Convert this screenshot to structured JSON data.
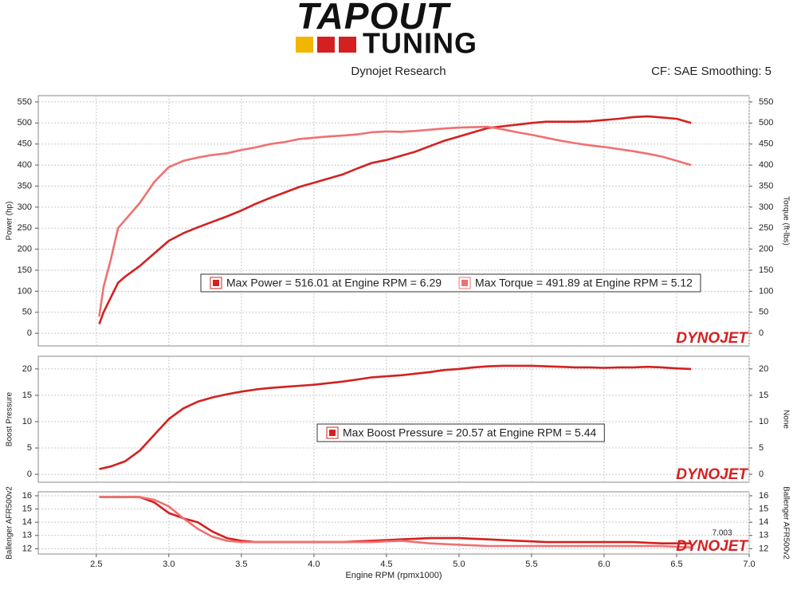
{
  "header": {
    "logo_top": "TAPOUT",
    "logo_bottom": "TUNING",
    "source": "Dynojet Research",
    "settings": "CF: SAE Smoothing: 5"
  },
  "chart_data": [
    {
      "type": "line",
      "ylabel": "Power (hp)",
      "y2label": "Torque (ft-lbs)",
      "watermark": "DYNOJET",
      "grid": true,
      "x": [
        2.52,
        2.55,
        2.6,
        2.65,
        2.7,
        2.8,
        2.9,
        3.0,
        3.1,
        3.2,
        3.3,
        3.4,
        3.5,
        3.6,
        3.7,
        3.8,
        3.9,
        4.0,
        4.1,
        4.2,
        4.3,
        4.4,
        4.5,
        4.6,
        4.7,
        4.8,
        4.9,
        5.0,
        5.1,
        5.2,
        5.3,
        5.4,
        5.5,
        5.6,
        5.7,
        5.8,
        5.9,
        6.0,
        6.1,
        6.2,
        6.3,
        6.4,
        6.5,
        6.6
      ],
      "series": [
        {
          "name": "Max Power = 516.01 at Engine RPM = 6.29",
          "color": "#d42020",
          "values": [
            22,
            50,
            85,
            120,
            135,
            160,
            190,
            220,
            238,
            252,
            265,
            278,
            292,
            308,
            322,
            335,
            348,
            358,
            368,
            378,
            392,
            405,
            412,
            422,
            432,
            445,
            458,
            468,
            478,
            488,
            492,
            496,
            500,
            503,
            503,
            503,
            504,
            507,
            510,
            514,
            516,
            513,
            510,
            500
          ]
        },
        {
          "name": "Max Torque = 491.89 at Engine RPM = 5.12",
          "color": "#f07070",
          "axis": "y2",
          "values": [
            40,
            110,
            175,
            250,
            270,
            310,
            360,
            395,
            410,
            418,
            424,
            428,
            436,
            442,
            450,
            455,
            462,
            465,
            468,
            470,
            473,
            478,
            480,
            479,
            481,
            484,
            487,
            489,
            490,
            491,
            485,
            478,
            472,
            465,
            458,
            452,
            447,
            443,
            438,
            433,
            427,
            420,
            410,
            400
          ]
        }
      ],
      "ylim": [
        -30,
        565
      ],
      "yticks": [
        0,
        50,
        100,
        150,
        200,
        250,
        300,
        350,
        400,
        450,
        500,
        550
      ],
      "y2lim": [
        -30,
        565
      ],
      "y2ticks": [
        0,
        50,
        100,
        150,
        200,
        250,
        300,
        350,
        400,
        450,
        500,
        550
      ]
    },
    {
      "type": "line",
      "ylabel": "Boost Pressure",
      "y2label": "None",
      "watermark": "DYNOJET",
      "grid": true,
      "x": [
        2.52,
        2.6,
        2.7,
        2.8,
        2.9,
        3.0,
        3.1,
        3.2,
        3.3,
        3.4,
        3.5,
        3.6,
        3.7,
        3.8,
        3.9,
        4.0,
        4.1,
        4.2,
        4.3,
        4.4,
        4.5,
        4.6,
        4.7,
        4.8,
        4.9,
        5.0,
        5.1,
        5.2,
        5.3,
        5.4,
        5.5,
        5.6,
        5.7,
        5.8,
        5.9,
        6.0,
        6.1,
        6.2,
        6.3,
        6.4,
        6.5,
        6.6
      ],
      "series": [
        {
          "name": "Max Boost Pressure = 20.57 at Engine RPM = 5.44",
          "color": "#d42020",
          "values": [
            1,
            1.5,
            2.5,
            4.5,
            7.5,
            10.5,
            12.5,
            13.8,
            14.6,
            15.2,
            15.7,
            16.1,
            16.4,
            16.6,
            16.8,
            17.0,
            17.3,
            17.6,
            18.0,
            18.4,
            18.6,
            18.8,
            19.1,
            19.4,
            19.8,
            20.0,
            20.3,
            20.5,
            20.6,
            20.6,
            20.6,
            20.5,
            20.4,
            20.3,
            20.3,
            20.2,
            20.3,
            20.3,
            20.4,
            20.3,
            20.1,
            20.0
          ]
        }
      ],
      "ylim": [
        -1.5,
        22.4
      ],
      "yticks": [
        0,
        5,
        10,
        15,
        20
      ]
    },
    {
      "type": "line",
      "ylabel": "Ballenger AFR500v2",
      "y2label": "Ballenger AFR500v2",
      "watermark": "DYNOJET",
      "grid": true,
      "annotation": "7.003",
      "xlabel": "Engine RPM (rpmx1000)",
      "x": [
        2.52,
        2.6,
        2.7,
        2.8,
        2.9,
        3.0,
        3.1,
        3.2,
        3.3,
        3.4,
        3.5,
        3.6,
        3.7,
        3.8,
        3.9,
        4.0,
        4.1,
        4.2,
        4.3,
        4.4,
        4.5,
        4.6,
        4.7,
        4.8,
        4.9,
        5.0,
        5.1,
        5.2,
        5.3,
        5.4,
        5.5,
        5.6,
        5.7,
        5.8,
        5.9,
        6.0,
        6.1,
        6.2,
        6.3,
        6.4,
        6.5,
        6.6
      ],
      "series": [
        {
          "color": "#d42020",
          "values": [
            15.9,
            15.9,
            15.9,
            15.9,
            15.5,
            14.7,
            14.3,
            14.0,
            13.3,
            12.8,
            12.6,
            12.5,
            12.5,
            12.5,
            12.5,
            12.5,
            12.5,
            12.5,
            12.55,
            12.6,
            12.65,
            12.7,
            12.75,
            12.8,
            12.8,
            12.8,
            12.75,
            12.7,
            12.65,
            12.6,
            12.55,
            12.5,
            12.5,
            12.5,
            12.5,
            12.5,
            12.5,
            12.5,
            12.45,
            12.4,
            12.4,
            12.4
          ]
        },
        {
          "color": "#f07070",
          "values": [
            15.9,
            15.9,
            15.9,
            15.9,
            15.7,
            15.2,
            14.3,
            13.5,
            12.9,
            12.6,
            12.5,
            12.5,
            12.5,
            12.5,
            12.5,
            12.5,
            12.5,
            12.5,
            12.5,
            12.5,
            12.55,
            12.6,
            12.5,
            12.4,
            12.35,
            12.3,
            12.25,
            12.2,
            12.2,
            12.2,
            12.2,
            12.2,
            12.2,
            12.2,
            12.2,
            12.2,
            12.2,
            12.2,
            12.2,
            12.2,
            12.15,
            12.1
          ]
        }
      ],
      "ylim": [
        11.6,
        16.3
      ],
      "yticks": [
        12,
        13,
        14,
        15,
        16
      ],
      "xlim": [
        2.1,
        7.0
      ],
      "xticks": [
        {
          "value": 2.5,
          "label": "2.5"
        },
        {
          "value": 3.0,
          "label": "3.0"
        },
        {
          "value": 3.5,
          "label": "3.5"
        },
        {
          "value": 4.0,
          "label": "4.0"
        },
        {
          "value": 4.5,
          "label": "4.5"
        },
        {
          "value": 5.0,
          "label": "5.0"
        },
        {
          "value": 5.5,
          "label": "5.5"
        },
        {
          "value": 6.0,
          "label": "6.0"
        },
        {
          "value": 6.5,
          "label": "6.5"
        },
        {
          "value": 7.0,
          "label": "7.0"
        }
      ]
    }
  ]
}
